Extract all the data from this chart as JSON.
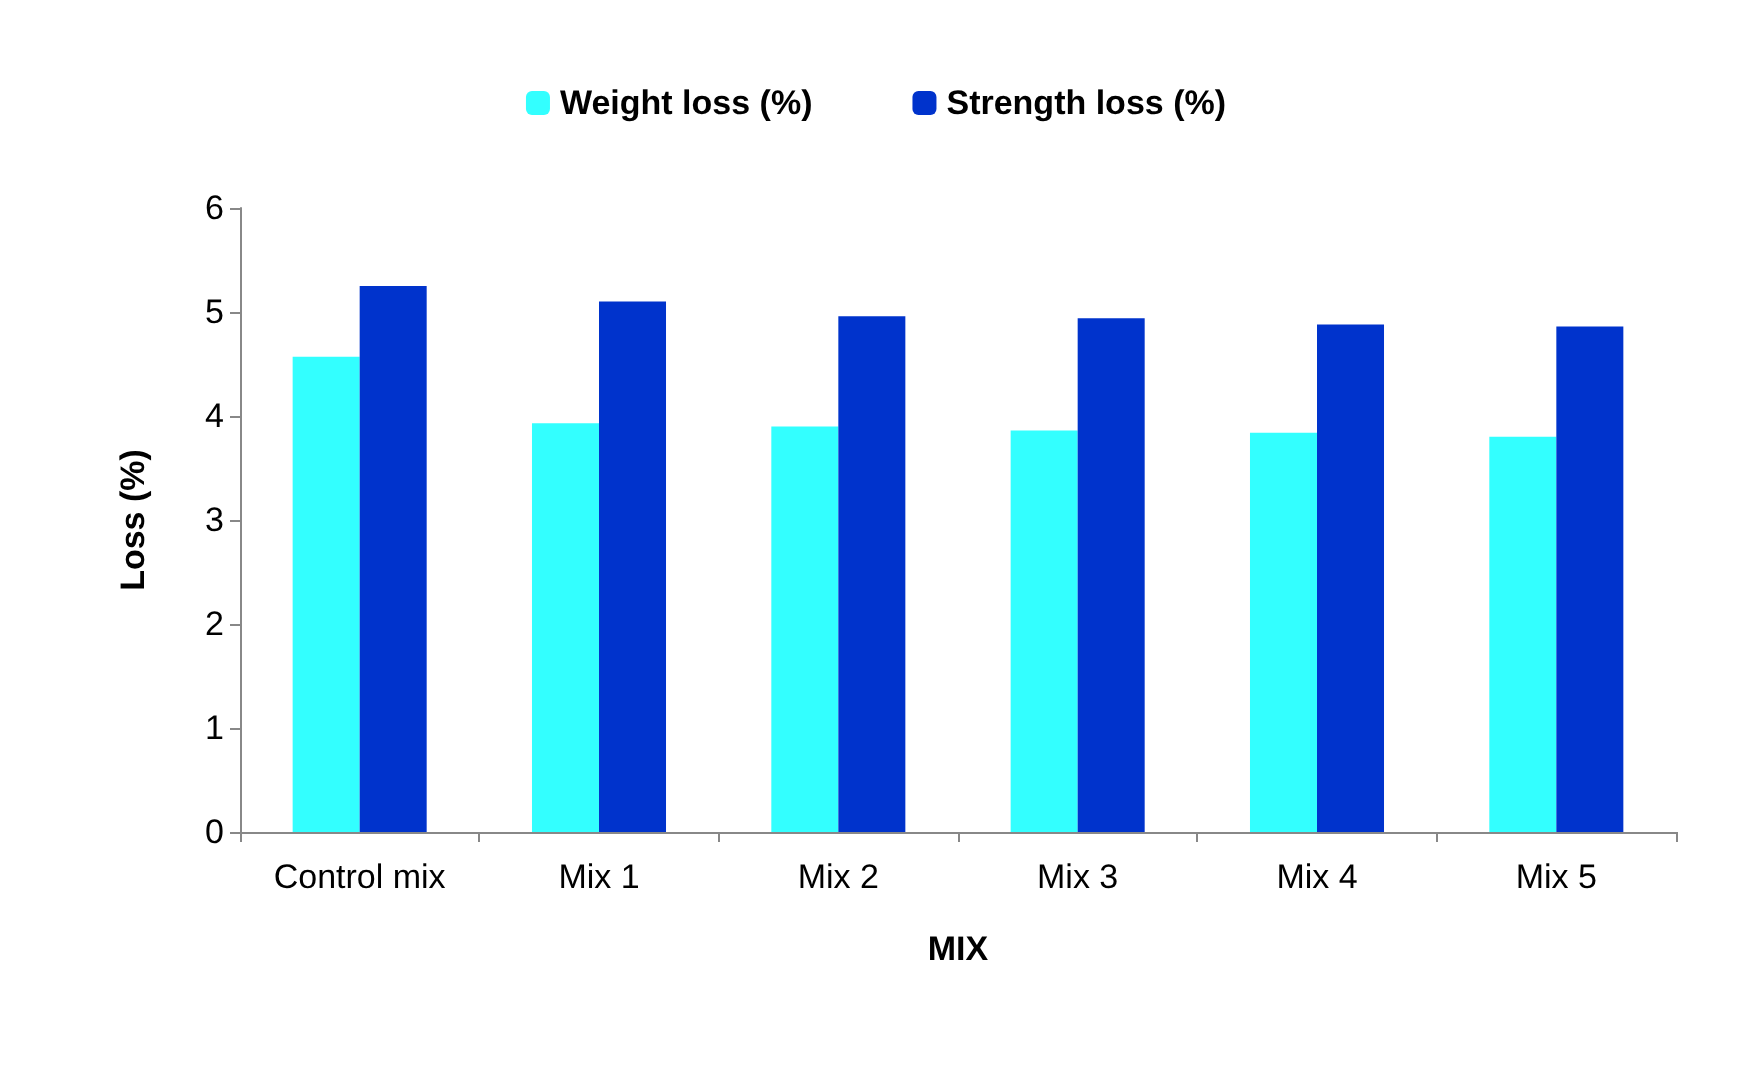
{
  "chart_data": {
    "type": "bar",
    "xlabel": "MIX",
    "ylabel": "Loss (%)",
    "categories": [
      "Control mix",
      "Mix 1",
      "Mix 2",
      "Mix 3",
      "Mix 4",
      "Mix 5"
    ],
    "series": [
      {
        "name": "Weight loss (%)",
        "color": "#33ffff",
        "values": [
          4.57,
          3.93,
          3.9,
          3.86,
          3.84,
          3.8
        ]
      },
      {
        "name": "Strength loss (%)",
        "color": "#0033cc",
        "values": [
          5.25,
          5.1,
          4.96,
          4.94,
          4.88,
          4.86
        ]
      }
    ],
    "ylim": [
      0,
      6
    ],
    "yticks": [
      0,
      1,
      2,
      3,
      4,
      5,
      6
    ],
    "grid": false,
    "legend": "top"
  }
}
